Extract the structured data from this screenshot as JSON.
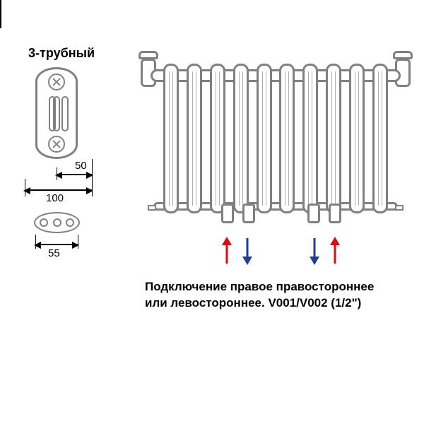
{
  "left": {
    "title": "3-трубный",
    "dim_50": "50",
    "dim_100": "100",
    "dim_55": "55"
  },
  "radiator": {
    "tube_count": 10
  },
  "flows": {
    "group1": {
      "up_color": "#e30613",
      "down_color": "#1c3f94"
    },
    "group2": {
      "up_color": "#e30613",
      "down_color": "#1c3f94"
    }
  },
  "caption": {
    "line1": "Подключение правое правостороннее",
    "line2": "или левостороннее. V001/V002 (1/2\")"
  },
  "colors": {
    "stroke": "#808080",
    "text": "#000000",
    "bg": "#ffffff"
  }
}
